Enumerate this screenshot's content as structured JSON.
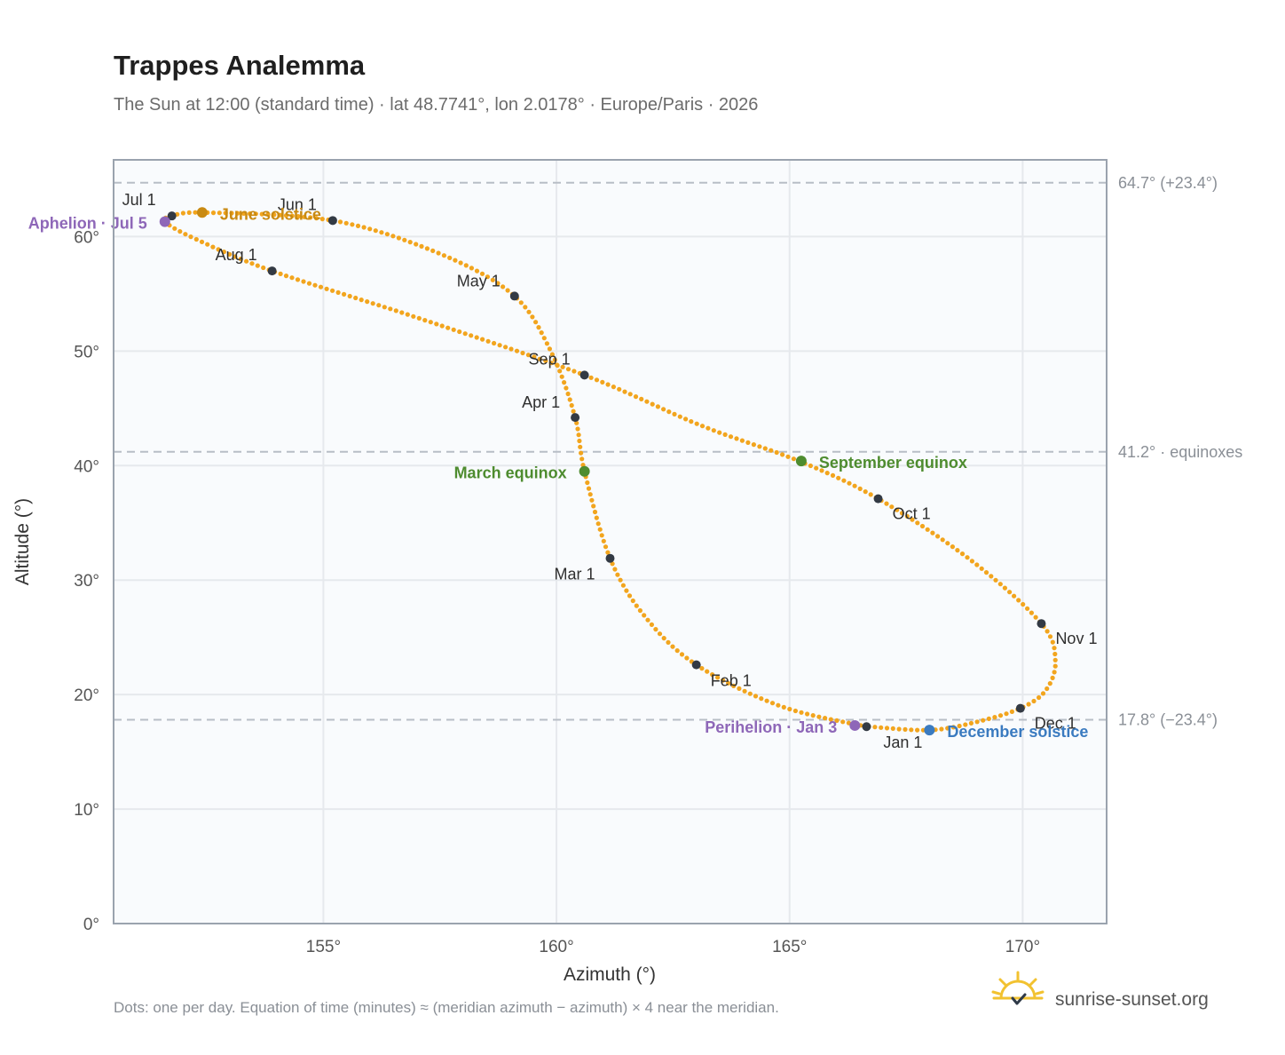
{
  "chart_data": {
    "type": "scatter",
    "title": "Trappes Analemma",
    "subtitle": "The Sun at 12:00 (standard time) · lat 48.7741°, lon 2.0178° · Europe/Paris · 2026",
    "xlabel": "Azimuth (°)",
    "ylabel": "Altitude (°)",
    "xlim": [
      150.5,
      171.8
    ],
    "ylim": [
      0,
      66.7
    ],
    "x_ticks": [
      {
        "value": 155,
        "label": "155°"
      },
      {
        "value": 160,
        "label": "160°"
      },
      {
        "value": 165,
        "label": "165°"
      },
      {
        "value": 170,
        "label": "170°"
      }
    ],
    "y_ticks": [
      {
        "value": 0,
        "label": "0°"
      },
      {
        "value": 10,
        "label": "10°"
      },
      {
        "value": 20,
        "label": "20°"
      },
      {
        "value": 30,
        "label": "30°"
      },
      {
        "value": 40,
        "label": "40°"
      },
      {
        "value": 50,
        "label": "50°"
      },
      {
        "value": 60,
        "label": "60°"
      }
    ],
    "grid": true,
    "reference_lines": [
      {
        "y": 64.7,
        "label": "64.7° (+23.4°)"
      },
      {
        "y": 41.2,
        "label": "41.2° · equinoxes"
      },
      {
        "y": 17.8,
        "label": "17.8° (−23.4°)"
      }
    ],
    "daily_path": [
      {
        "date": "Jan 1",
        "az": 166.65,
        "alt": 17.2
      },
      {
        "date": "Jan 16",
        "az": 164.8,
        "alt": 19.0
      },
      {
        "date": "Feb 1",
        "az": 163.0,
        "alt": 22.6
      },
      {
        "date": "Feb 15",
        "az": 161.9,
        "alt": 26.8
      },
      {
        "date": "Mar 1",
        "az": 161.15,
        "alt": 31.9
      },
      {
        "date": "Mar 20",
        "az": 160.6,
        "alt": 39.5
      },
      {
        "date": "Apr 1",
        "az": 160.4,
        "alt": 44.2
      },
      {
        "date": "Apr 15",
        "az": 159.9,
        "alt": 49.8
      },
      {
        "date": "May 1",
        "az": 159.1,
        "alt": 54.8
      },
      {
        "date": "May 15",
        "az": 157.5,
        "alt": 58.5
      },
      {
        "date": "Jun 1",
        "az": 155.2,
        "alt": 61.4
      },
      {
        "date": "Jun 21",
        "az": 152.4,
        "alt": 62.1
      },
      {
        "date": "Jul 1",
        "az": 151.7,
        "alt": 61.7
      },
      {
        "date": "Jul 5",
        "az": 151.6,
        "alt": 61.3
      },
      {
        "date": "Jul 15",
        "az": 152.2,
        "alt": 59.9
      },
      {
        "date": "Aug 1",
        "az": 153.9,
        "alt": 57.0
      },
      {
        "date": "Aug 15",
        "az": 157.1,
        "alt": 52.8
      },
      {
        "date": "Sep 1",
        "az": 160.6,
        "alt": 47.9
      },
      {
        "date": "Sep 15",
        "az": 163.1,
        "alt": 43.5
      },
      {
        "date": "Sep 23",
        "az": 165.2,
        "alt": 40.4
      },
      {
        "date": "Oct 1",
        "az": 166.9,
        "alt": 37.1
      },
      {
        "date": "Oct 15",
        "az": 168.9,
        "alt": 31.7
      },
      {
        "date": "Nov 1",
        "az": 170.4,
        "alt": 26.2
      },
      {
        "date": "Nov 10",
        "az": 170.7,
        "alt": 23.0
      },
      {
        "date": "Nov 20",
        "az": 170.5,
        "alt": 20.4
      },
      {
        "date": "Dec 1",
        "az": 169.95,
        "alt": 18.8
      },
      {
        "date": "Dec 10",
        "az": 169.0,
        "alt": 17.6
      },
      {
        "date": "Dec 21",
        "az": 168.0,
        "alt": 16.9
      },
      {
        "date": "Dec 31",
        "az": 166.7,
        "alt": 17.2
      }
    ],
    "month_markers": [
      {
        "label": "Jan 1",
        "az": 166.65,
        "alt": 17.2,
        "anchor": "middle",
        "dx": 41,
        "dy": 24
      },
      {
        "label": "Feb 1",
        "az": 163.0,
        "alt": 22.6,
        "anchor": "start",
        "dx": 16,
        "dy": 24
      },
      {
        "label": "Mar 1",
        "az": 161.15,
        "alt": 31.9,
        "anchor": "end",
        "dx": -17,
        "dy": 24
      },
      {
        "label": "Apr 1",
        "az": 160.4,
        "alt": 44.2,
        "anchor": "end",
        "dx": -17,
        "dy": -11
      },
      {
        "label": "May 1",
        "az": 159.1,
        "alt": 54.8,
        "anchor": "end",
        "dx": -16,
        "dy": -11
      },
      {
        "label": "Jun 1",
        "az": 155.2,
        "alt": 61.4,
        "anchor": "middle",
        "dx": -40,
        "dy": -12
      },
      {
        "label": "Jul 1",
        "az": 151.75,
        "alt": 61.8,
        "anchor": "end",
        "dx": -18,
        "dy": -12
      },
      {
        "label": "Aug 1",
        "az": 153.9,
        "alt": 57.0,
        "anchor": "end",
        "dx": -17,
        "dy": -12
      },
      {
        "label": "Sep 1",
        "az": 160.6,
        "alt": 47.9,
        "anchor": "end",
        "dx": -16,
        "dy": -12
      },
      {
        "label": "Oct 1",
        "az": 166.9,
        "alt": 37.1,
        "anchor": "start",
        "dx": 16,
        "dy": 23
      },
      {
        "label": "Nov 1",
        "az": 170.4,
        "alt": 26.2,
        "anchor": "start",
        "dx": 16,
        "dy": 23
      },
      {
        "label": "Dec 1",
        "az": 169.95,
        "alt": 18.8,
        "anchor": "start",
        "dx": 16,
        "dy": 23
      }
    ],
    "events": [
      {
        "label": "June solstice",
        "az": 152.4,
        "alt": 62.1,
        "color": "#c98a12",
        "anchor": "start",
        "dx": 20,
        "dy": 8
      },
      {
        "label": "Aphelion · Jul 5",
        "az": 151.6,
        "alt": 61.3,
        "color": "#8e67b8",
        "anchor": "end",
        "dx": -20,
        "dy": 8
      },
      {
        "label": "March equinox",
        "az": 160.6,
        "alt": 39.5,
        "color": "#4e8c2f",
        "anchor": "end",
        "dx": -20,
        "dy": 8
      },
      {
        "label": "September equinox",
        "az": 165.25,
        "alt": 40.4,
        "color": "#4e8c2f",
        "anchor": "start",
        "dx": 20,
        "dy": 8
      },
      {
        "label": "Perihelion · Jan 3",
        "az": 166.4,
        "alt": 17.3,
        "color": "#8e67b8",
        "anchor": "end",
        "dx": -20,
        "dy": 8
      },
      {
        "label": "December solstice",
        "az": 168.0,
        "alt": 16.9,
        "color": "#3b7bc0",
        "anchor": "start",
        "dx": 20,
        "dy": 8
      }
    ],
    "colors": {
      "path": "#f2a51e",
      "month_marker": "#333a44",
      "plot_background": "#f9fbfd",
      "grid": "#e6e9ed",
      "frame": "#9aa3ae",
      "reference_line": "#b8bec6"
    }
  },
  "footer": {
    "note": "Dots: one per day. Equation of time (minutes) ≈ (meridian azimuth − azimuth) × 4 near the meridian.",
    "brand": "sunrise-sunset.org",
    "brand_icon": "sun-logo-icon"
  }
}
